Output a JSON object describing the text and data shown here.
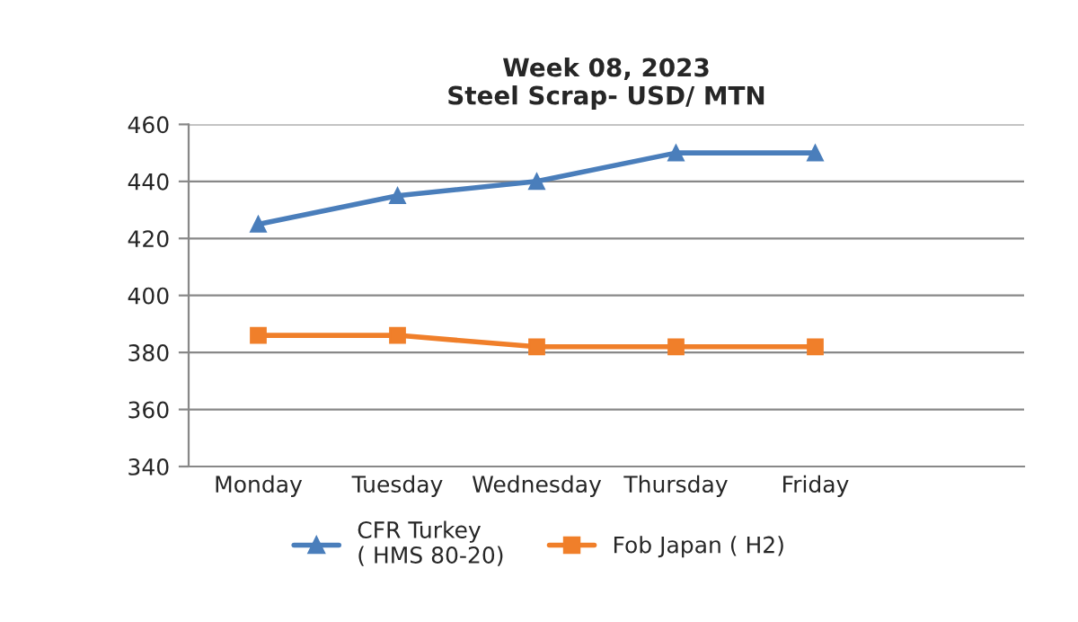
{
  "chart_data": {
    "type": "line",
    "title": "Week 08, 2023\nSteel Scrap- USD/ MTN",
    "categories": [
      "Monday",
      "Tuesday",
      "Wednesday",
      "Thursday",
      "Friday",
      null
    ],
    "series": [
      {
        "name": "CFR Turkey\n( HMS 80-20)",
        "color": "#4a7ebb",
        "marker": "triangle",
        "values": [
          425,
          435,
          440,
          450,
          450,
          null
        ]
      },
      {
        "name": "Fob Japan ( H2)",
        "color": "#f07f2a",
        "marker": "square",
        "values": [
          386,
          386,
          382,
          382,
          382,
          null
        ]
      }
    ],
    "ylim": [
      340,
      460
    ],
    "yticks": [
      340,
      360,
      380,
      400,
      420,
      440,
      460
    ],
    "grid": "y",
    "legend": "bottom",
    "line_style": "solid"
  }
}
